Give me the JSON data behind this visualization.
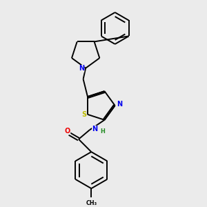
{
  "background_color": "#ebebeb",
  "bond_color": "#000000",
  "atom_colors": {
    "N": "#0000ee",
    "S": "#bbbb00",
    "O": "#ee0000",
    "H": "#228b22",
    "C": "#000000"
  },
  "lw": 1.4,
  "fs": 7.0
}
